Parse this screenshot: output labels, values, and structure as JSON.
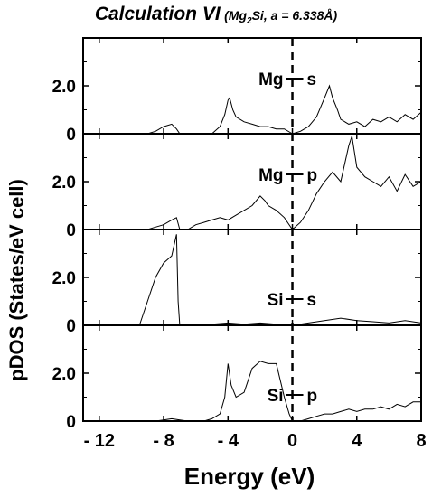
{
  "title": {
    "main": "Calculation VI",
    "sub_prefix": "(Mg",
    "sub_subscript": "2",
    "sub_suffix": "Si, a = 6.338Å)"
  },
  "chart_data": {
    "type": "line",
    "title": "Calculation VI (Mg2Si, a = 6.338Å)",
    "xlabel": "Energy (eV)",
    "ylabel": "pDOS (States/eV cell)",
    "xlim": [
      -13,
      8
    ],
    "ylim": [
      0,
      4
    ],
    "x_ticks": [
      -12,
      -8,
      -4,
      0,
      4,
      8
    ],
    "x_tick_labels": [
      "- 12",
      "- 8",
      "- 4",
      "0",
      "4",
      "8"
    ],
    "y_ticks": [
      0,
      2
    ],
    "y_tick_labels": [
      "0",
      "2.0"
    ],
    "fermi_level": 0,
    "grid": false,
    "panels": [
      {
        "label_left": "Mg",
        "label_right": "s",
        "x": [
          -9.5,
          -9,
          -8.5,
          -8,
          -7.5,
          -7.2,
          -7,
          -6.5,
          -6,
          -5.5,
          -5,
          -4.5,
          -4.2,
          -4,
          -3.9,
          -3.7,
          -3.5,
          -3,
          -2.5,
          -2,
          -1.5,
          -1,
          -0.5,
          0,
          0.5,
          1,
          1.5,
          2,
          2.3,
          2.5,
          2.8,
          3,
          3.5,
          4,
          4.5,
          5,
          5.5,
          6,
          6.5,
          7,
          7.5,
          8
        ],
        "y": [
          0,
          0,
          0.1,
          0.3,
          0.4,
          0.2,
          0,
          0,
          0,
          0,
          0,
          0.3,
          0.8,
          1.4,
          1.5,
          1.0,
          0.7,
          0.5,
          0.4,
          0.3,
          0.3,
          0.2,
          0.2,
          0,
          0.1,
          0.3,
          0.7,
          1.5,
          2.0,
          1.5,
          1.0,
          0.6,
          0.4,
          0.5,
          0.3,
          0.6,
          0.5,
          0.7,
          0.5,
          0.8,
          0.6,
          0.9
        ]
      },
      {
        "label_left": "Mg",
        "label_right": "p",
        "x": [
          -9.5,
          -9,
          -8.5,
          -8,
          -7.5,
          -7.2,
          -7,
          -6.5,
          -6,
          -5.5,
          -5,
          -4.5,
          -4,
          -3.5,
          -3,
          -2.5,
          -2,
          -1.7,
          -1.5,
          -1,
          -0.5,
          0,
          0.5,
          1,
          1.5,
          2,
          2.5,
          3,
          3.5,
          3.7,
          4,
          4.5,
          5,
          5.5,
          6,
          6.5,
          7,
          7.5,
          8
        ],
        "y": [
          0,
          0,
          0.1,
          0.2,
          0.4,
          0.5,
          0,
          0,
          0.2,
          0.3,
          0.4,
          0.5,
          0.4,
          0.6,
          0.8,
          1.0,
          1.4,
          1.2,
          1.0,
          0.8,
          0.5,
          0,
          0.3,
          0.8,
          1.5,
          2.0,
          2.4,
          2.0,
          3.5,
          3.9,
          2.6,
          2.2,
          2.0,
          1.8,
          2.2,
          1.6,
          2.3,
          1.8,
          2.0
        ]
      },
      {
        "label_left": "Si",
        "label_right": "s",
        "x": [
          -9.5,
          -9,
          -8.5,
          -8,
          -7.5,
          -7.2,
          -7.1,
          -7,
          -6.5,
          -6,
          -5,
          -4,
          -3,
          -2,
          -1,
          0,
          1,
          2,
          3,
          4,
          5,
          6,
          7,
          8
        ],
        "y": [
          0,
          1.0,
          2.0,
          2.6,
          2.9,
          3.8,
          1.0,
          0,
          0,
          0.05,
          0.05,
          0.1,
          0.05,
          0.1,
          0.05,
          0,
          0.1,
          0.2,
          0.3,
          0.2,
          0.15,
          0.1,
          0.2,
          0.1
        ]
      },
      {
        "label_left": "Si",
        "label_right": "p",
        "x": [
          -9.5,
          -9,
          -8.5,
          -8,
          -7.5,
          -7,
          -6.5,
          -6,
          -5.5,
          -5,
          -4.5,
          -4.2,
          -4,
          -3.8,
          -3.5,
          -3,
          -2.5,
          -2,
          -1.5,
          -1,
          -0.5,
          -0.2,
          0,
          0.5,
          1,
          1.5,
          2,
          2.5,
          3,
          3.5,
          4,
          4.5,
          5,
          5.5,
          6,
          6.5,
          7,
          7.5,
          8
        ],
        "y": [
          0,
          0,
          0,
          0.05,
          0.1,
          0.05,
          0,
          0,
          0,
          0.1,
          0.3,
          1.0,
          2.4,
          1.5,
          1.0,
          1.2,
          2.2,
          2.5,
          2.4,
          2.4,
          1.0,
          0.3,
          0,
          0,
          0.1,
          0.2,
          0.3,
          0.3,
          0.4,
          0.5,
          0.4,
          0.5,
          0.5,
          0.6,
          0.5,
          0.7,
          0.6,
          0.8,
          0.8
        ]
      }
    ]
  }
}
